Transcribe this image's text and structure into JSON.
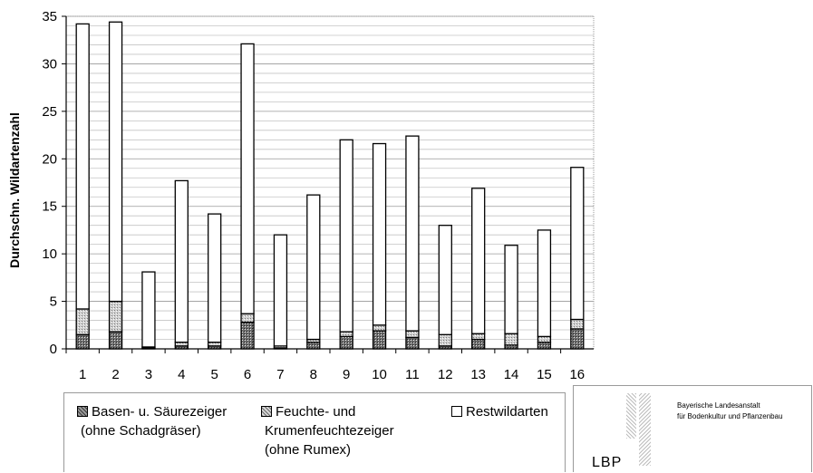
{
  "chart_data": {
    "type": "bar",
    "stacked": true,
    "xlabel": "",
    "ylabel": "Durchschn. Wildartenzahl",
    "ylim": [
      0,
      35
    ],
    "yticks": [
      0,
      5,
      10,
      15,
      20,
      25,
      30,
      35
    ],
    "grid": true,
    "categories": [
      "1",
      "2",
      "3",
      "4",
      "5",
      "6",
      "7",
      "8",
      "9",
      "10",
      "11",
      "12",
      "13",
      "14",
      "15",
      "16"
    ],
    "series": [
      {
        "name": "Basen- u. Säurezeiger (ohne Schadgräser)",
        "pattern": "dark",
        "values": [
          1.5,
          1.8,
          0.1,
          0.3,
          0.3,
          2.8,
          0.1,
          0.7,
          1.3,
          1.9,
          1.2,
          0.3,
          1.0,
          0.4,
          0.7,
          2.1
        ]
      },
      {
        "name": "Feuchte- und Krumenfeuchtezeiger (ohne Rumex)",
        "pattern": "light",
        "values": [
          2.7,
          3.2,
          0.1,
          0.4,
          0.4,
          0.9,
          0.2,
          0.3,
          0.5,
          0.6,
          0.7,
          1.2,
          0.6,
          1.2,
          0.6,
          1.0
        ]
      },
      {
        "name": "Restwildarten",
        "pattern": "white",
        "values": [
          30.0,
          29.4,
          7.9,
          17.0,
          13.5,
          28.4,
          11.7,
          15.2,
          20.2,
          19.1,
          20.5,
          11.5,
          15.3,
          9.3,
          11.2,
          16.0
        ]
      }
    ]
  },
  "legend": {
    "basen_line1": "Basen- u. Säurezeiger",
    "basen_line2": "(ohne Schadgräser)",
    "feuchte_line1": "Feuchte- und",
    "feuchte_line2": "Krumenfeuchtezeiger",
    "feuchte_line3": "(ohne Rumex)",
    "rest_label": "Restwildarten"
  },
  "logo": {
    "org_line1": "Bayerische Landesanstalt",
    "org_line2": "für Bodenkultur und Pflanzenbau",
    "abbr": "LBP"
  }
}
